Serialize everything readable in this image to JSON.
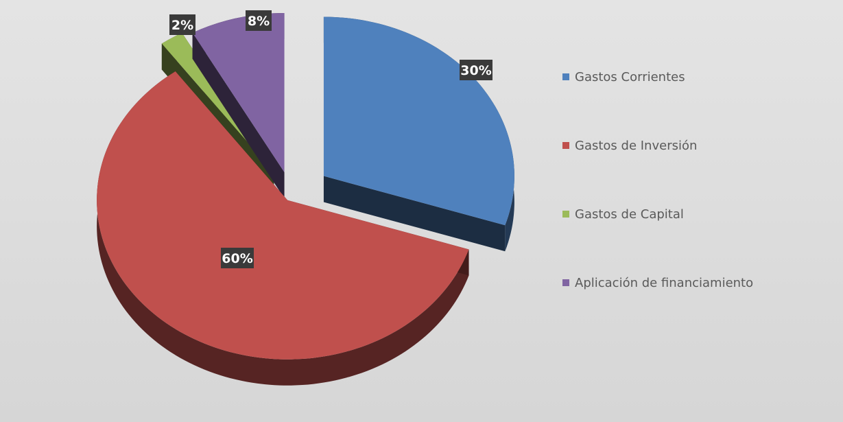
{
  "chart_data": {
    "type": "pie",
    "categories": [
      "Gastos Corrientes",
      "Gastos de Inversión",
      "Gastos de Capital",
      "Aplicación de financiamiento"
    ],
    "values": [
      30,
      60,
      2,
      8
    ],
    "data_labels": [
      "30%",
      "60%",
      "2%",
      "8%"
    ],
    "colors": [
      "#4f81bd",
      "#c0504d",
      "#9bbb59",
      "#8064a2"
    ],
    "exploded": true,
    "three_d": true,
    "legend_position": "right"
  }
}
